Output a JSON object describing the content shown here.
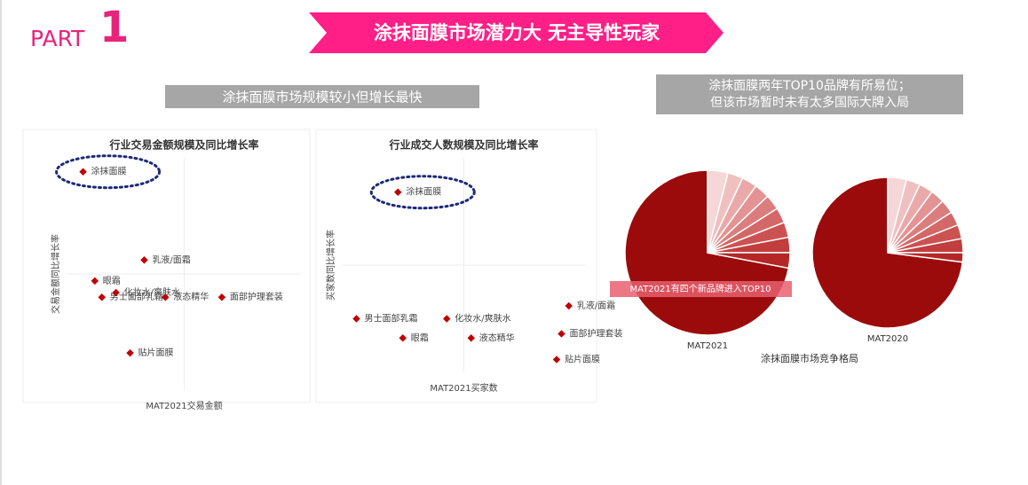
{
  "header": {
    "part": "PART",
    "number": "1",
    "title": "涂抹面膜市场潜力大 无主导性玩家"
  },
  "left_heading": "涂抹面膜市场规模较小但增长最快",
  "right_heading": [
    "涂抹面膜两年TOP10品牌有所易位；",
    "但该市场暂时未有太多国际大牌入局"
  ],
  "pie_caption": "涂抹面膜市场竞争格局",
  "chart_data": [
    {
      "type": "scatter",
      "title": "行业交易金额规模及同比增长率",
      "x_label": "MAT2021交易金额",
      "y_label": "交易金额同比增长率",
      "xlim": [
        0,
        100
      ],
      "ylim": [
        0,
        100
      ],
      "color": "#c00000",
      "point_labels": [
        "涂抹面膜",
        "乳液/面霜",
        "眼霜",
        "男士面部乳霜",
        "化妆水/爽肤水",
        "液态精华",
        "面部护理套装",
        "贴片面膜"
      ],
      "x": [
        7,
        33,
        12,
        15,
        21,
        42,
        66,
        27
      ],
      "values": [
        94,
        56,
        47,
        40,
        42,
        40,
        40,
        16
      ]
    },
    {
      "type": "scatter",
      "title": "行业成交人数规模及同比增长率",
      "x_label": "MAT2021买家数",
      "y_label": "买家数同比增长率",
      "xlim": [
        0,
        100
      ],
      "ylim": [
        0,
        100
      ],
      "color": "#c00000",
      "point_labels": [
        "涂抹面膜",
        "男士面部乳霜",
        "眼霜",
        "化妆水/爽肤水",
        "液态精华",
        "面部护理套装",
        "贴片面膜",
        "乳液/面霜"
      ],
      "x": [
        23,
        6,
        25,
        43,
        53,
        90,
        88,
        93
      ],
      "values": [
        84,
        25,
        16,
        25,
        16,
        18,
        6,
        31
      ]
    },
    {
      "type": "pie",
      "label": "MAT2021",
      "annotation": "MAT2021有四个新品牌进入TOP10",
      "values": [
        72,
        4,
        3,
        3,
        3,
        3,
        3,
        3,
        3,
        3
      ],
      "colors": [
        "#9b0b0b",
        "#f6d6d6",
        "#f0c0c0",
        "#eaa9a9",
        "#e39393",
        "#dc7d7d",
        "#d46767",
        "#cc5252",
        "#c23d3d",
        "#b52727"
      ]
    },
    {
      "type": "pie",
      "label": "MAT2020",
      "values": [
        73,
        4,
        3,
        3,
        3,
        3,
        3,
        3,
        3,
        2
      ],
      "colors": [
        "#9b0b0b",
        "#f6d6d6",
        "#f0c0c0",
        "#eaa9a9",
        "#e39393",
        "#dc7d7d",
        "#d46767",
        "#cc5252",
        "#c23d3d",
        "#b52727"
      ]
    }
  ]
}
